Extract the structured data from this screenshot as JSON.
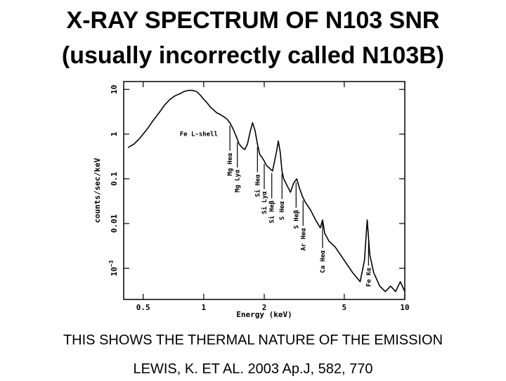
{
  "slide": {
    "title_line1": "X-RAY SPECTRUM OF N103 SNR",
    "title_line2": "(usually incorrectly called N103B)",
    "caption": "THIS SHOWS THE THERMAL NATURE OF THE EMISSION",
    "citation": "LEWIS, K. ET AL. 2003 Ap.J, 582, 770"
  },
  "chart_data": {
    "type": "line",
    "title": "",
    "xlabel": "Energy (keV)",
    "ylabel": "counts/sec/keV",
    "x_scale": "log",
    "y_scale": "log",
    "xlim": [
      0.4,
      10
    ],
    "ylim": [
      0.0002,
      15
    ],
    "grid": false,
    "x_ticks": [
      {
        "value": 0.5,
        "label": "0.5"
      },
      {
        "value": 1,
        "label": "1"
      },
      {
        "value": 2,
        "label": "2"
      },
      {
        "value": 5,
        "label": "5"
      },
      {
        "value": 10,
        "label": "10"
      }
    ],
    "y_ticks": [
      {
        "value": 10,
        "label": "10"
      },
      {
        "value": 1,
        "label": "1"
      },
      {
        "value": 0.1,
        "label": "0.1"
      },
      {
        "value": 0.01,
        "label": "0.01"
      },
      {
        "value": 0.001,
        "label": "10",
        "sup": "−3"
      }
    ],
    "series": [
      {
        "x": [
          0.42,
          0.45,
          0.48,
          0.5,
          0.53,
          0.56,
          0.6,
          0.64,
          0.68,
          0.72,
          0.76,
          0.8,
          0.84,
          0.88,
          0.92,
          0.96,
          1.0,
          1.04,
          1.08,
          1.12,
          1.16,
          1.2,
          1.25,
          1.3,
          1.35,
          1.4,
          1.45,
          1.5,
          1.55,
          1.6,
          1.65,
          1.7,
          1.75,
          1.8,
          1.85,
          1.9,
          1.95,
          2.0,
          2.05,
          2.1,
          2.2,
          2.3,
          2.35,
          2.4,
          2.45,
          2.5,
          2.6,
          2.7,
          2.8,
          2.9,
          3.0,
          3.1,
          3.2,
          3.4,
          3.6,
          3.8,
          3.9,
          4.0,
          4.2,
          4.5,
          5.0,
          5.5,
          6.0,
          6.3,
          6.5,
          6.7,
          7.0,
          7.5,
          8.0,
          8.5,
          9.0,
          9.5,
          10.0
        ],
        "y": [
          0.5,
          0.6,
          0.8,
          1.0,
          1.4,
          2.0,
          3.0,
          4.5,
          6.0,
          7.2,
          8.0,
          9.0,
          9.5,
          9.5,
          9.0,
          7.5,
          6.0,
          5.0,
          4.0,
          3.5,
          3.0,
          2.8,
          2.5,
          2.2,
          1.8,
          1.3,
          0.9,
          0.6,
          0.5,
          0.45,
          0.6,
          1.1,
          1.8,
          1.2,
          0.6,
          0.35,
          0.3,
          0.25,
          0.2,
          0.18,
          0.15,
          0.4,
          0.7,
          0.4,
          0.15,
          0.1,
          0.07,
          0.05,
          0.08,
          0.1,
          0.06,
          0.04,
          0.03,
          0.02,
          0.012,
          0.008,
          0.012,
          0.006,
          0.004,
          0.003,
          0.0015,
          0.0008,
          0.0005,
          0.0015,
          0.012,
          0.002,
          0.0008,
          0.0004,
          0.0003,
          0.0004,
          0.0003,
          0.0005,
          0.0003
        ]
      }
    ],
    "annotations": [
      {
        "text": "Fe L-shell",
        "x": 0.76,
        "y": 0.9
      },
      {
        "text": "Mg Heα",
        "line_x": 1.35
      },
      {
        "text": "Mg Lyα",
        "line_x": 1.47
      },
      {
        "text": "Si Heα",
        "line_x": 1.85
      },
      {
        "text": "Si Lyα",
        "line_x": 2.0
      },
      {
        "text": "Si Heβ",
        "line_x": 2.18
      },
      {
        "text": "S Heα",
        "line_x": 2.45
      },
      {
        "text": "S Heβ",
        "line_x": 2.88
      },
      {
        "text": "Ar Heα",
        "line_x": 3.12
      },
      {
        "text": "Ca Heα",
        "line_x": 3.9
      },
      {
        "text": "Fe Kα",
        "line_x": 6.6
      }
    ]
  }
}
